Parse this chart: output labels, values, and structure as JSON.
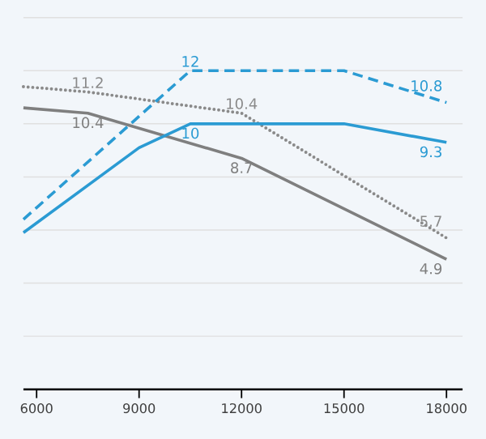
{
  "chart_data": {
    "type": "line",
    "xlim": [
      5614,
      18471
    ],
    "ylim": [
      0,
      14
    ],
    "xticks": [
      6000,
      9000,
      12000,
      15000,
      18000
    ],
    "tick_labels": "x",
    "grid": "y",
    "marker": "none",
    "series": [
      {
        "color": "#7f7f7f",
        "line_style": "solid",
        "x": [
          5614,
          7500,
          12000,
          18000
        ],
        "values": [
          10.6,
          10.4,
          8.7,
          4.9
        ],
        "value_labels": [
          null,
          "10.4",
          "8.7",
          "4.9"
        ]
      },
      {
        "color": "#8a8a8a",
        "line_style": "dotted",
        "x": [
          5614,
          7500,
          12000,
          18000
        ],
        "values": [
          11.4,
          11.2,
          10.4,
          5.7
        ],
        "value_labels": [
          null,
          "11.2",
          "10.4",
          "5.7"
        ]
      },
      {
        "color": "#2b9bd3",
        "line_style": "dashed",
        "x": [
          5614,
          10500,
          15000,
          18000
        ],
        "values": [
          6.4,
          12,
          12,
          10.8
        ],
        "value_labels": [
          null,
          "12",
          null,
          "10.8"
        ]
      },
      {
        "color": "#2b9bd3",
        "line_style": "solid",
        "x": [
          5614,
          9000,
          10500,
          15000,
          18000
        ],
        "values": [
          5.9,
          9.1,
          10,
          10,
          9.3
        ],
        "value_labels": [
          null,
          null,
          "10",
          null,
          "9.3"
        ]
      }
    ]
  }
}
